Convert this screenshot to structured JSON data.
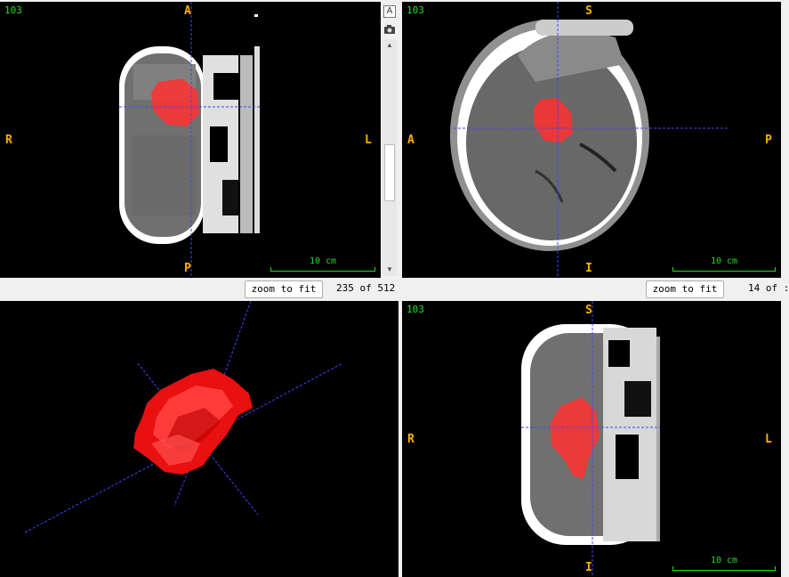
{
  "views": {
    "axial": {
      "slice_index": "103",
      "labels": {
        "top": "A",
        "bottom": "P",
        "left": "R",
        "right": "L"
      },
      "scale": "10 cm",
      "zoom_label": "zoom to fit",
      "counter": "235 of 512"
    },
    "sagittal": {
      "slice_index": "103",
      "labels": {
        "top": "S",
        "bottom": "I",
        "left": "A",
        "right": "P"
      },
      "scale": "10 cm",
      "zoom_label": "zoom to fit",
      "counter": "14 of :"
    },
    "coronal": {
      "slice_index": "103",
      "labels": {
        "top": "S",
        "bottom": "I",
        "left": "R",
        "right": "L"
      },
      "scale": "10 cm"
    }
  },
  "toolbar": {
    "annotation_icon": "A"
  },
  "colors": {
    "orientation": "#ffb000",
    "overlay": "#22dd22",
    "crosshair": "#4444ff",
    "segmentation": "#ff2020"
  }
}
